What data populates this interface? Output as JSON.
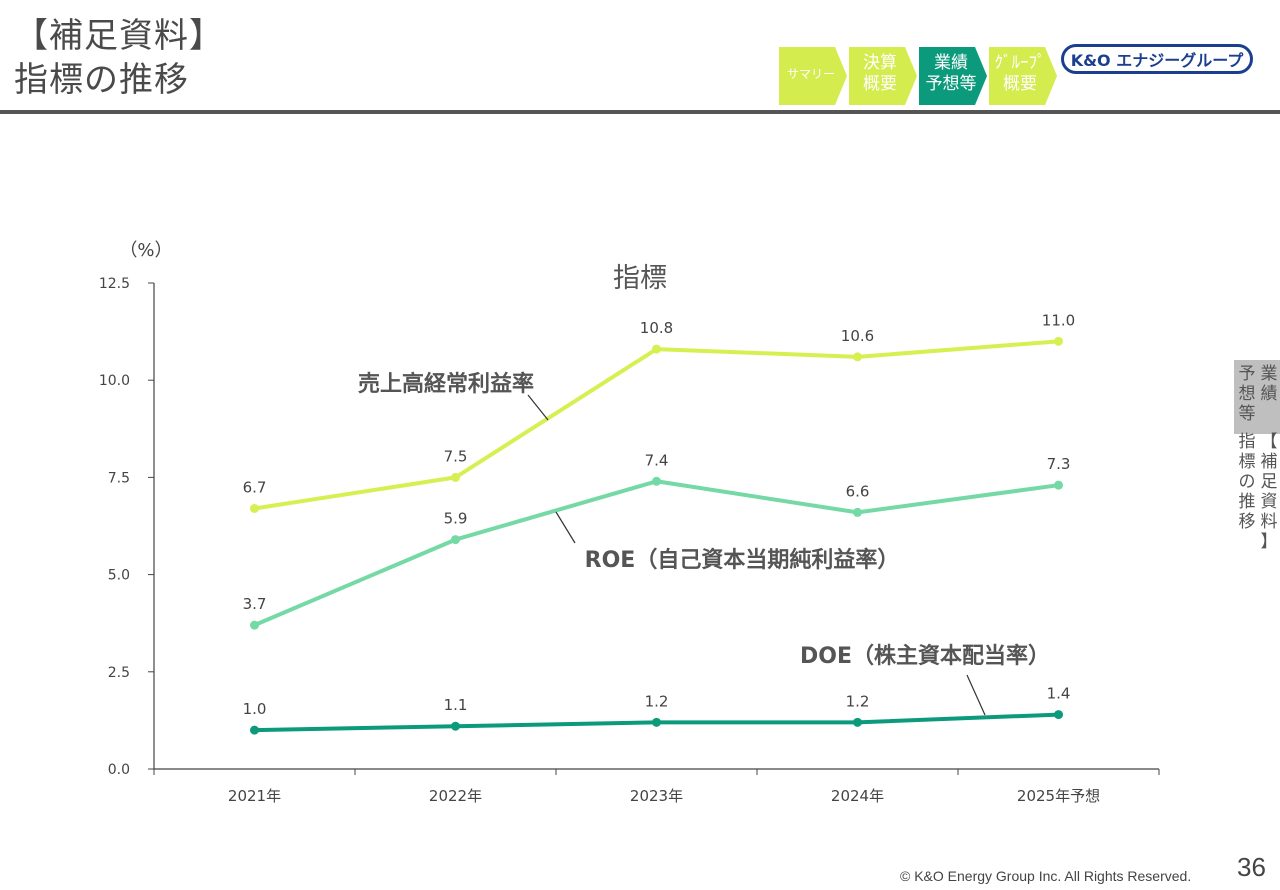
{
  "header": {
    "title_line1": "【補足資料】",
    "title_line2": "指標の推移",
    "nav": [
      {
        "label": "サマリー",
        "color": "#d4ec4e"
      },
      {
        "label": "決算\n概要",
        "color": "#d4ec4e"
      },
      {
        "label": "業績\n予想等",
        "color": "#0c9a7c",
        "active": true
      },
      {
        "label": "ｸﾞﾙｰﾌﾟ\n概要",
        "color": "#d4ec4e"
      }
    ],
    "logo_text": "K&O エナジーグループ"
  },
  "side_tab": {
    "col1": "業\n績",
    "col2": "予\n想\n等",
    "col3": "【\n補\n足\n資\n料\n】",
    "col4": "指\n標\nの\n推\n移"
  },
  "chart_data": {
    "type": "line",
    "title": "指標",
    "ylabel": "（%）",
    "categories": [
      "2021年",
      "2022年",
      "2023年",
      "2024年",
      "2025年予想"
    ],
    "ylim": [
      0,
      12.5
    ],
    "yticks": [
      "0.0",
      "2.5",
      "5.0",
      "7.5",
      "10.0",
      "12.5"
    ],
    "series": [
      {
        "name": "売上高経常利益率",
        "values": [
          6.7,
          7.5,
          10.8,
          10.6,
          11.0
        ],
        "labels": [
          "6.7",
          "7.5",
          "10.8",
          "10.6",
          "11.0"
        ],
        "color": "#d8ef52"
      },
      {
        "name": "ROE（自己資本当期純利益率）",
        "values": [
          3.7,
          5.9,
          7.4,
          6.6,
          7.3
        ],
        "labels": [
          "3.7",
          "5.9",
          "7.4",
          "6.6",
          "7.3"
        ],
        "color": "#74d9a5"
      },
      {
        "name": "DOE（株主資本配当率）",
        "values": [
          1.0,
          1.1,
          1.2,
          1.2,
          1.4
        ],
        "labels": [
          "1.0",
          "1.1",
          "1.2",
          "1.2",
          "1.4"
        ],
        "color": "#0c9a7c"
      }
    ],
    "grid": false,
    "legend": "inline-callouts"
  },
  "footer": {
    "copyright": "© K&O Energy Group Inc. All Rights Reserved.",
    "page": "36"
  }
}
